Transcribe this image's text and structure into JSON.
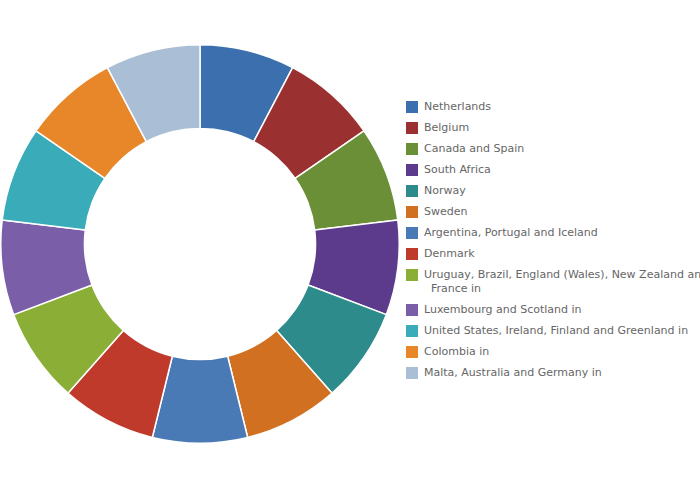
{
  "chart_data": {
    "type": "donut",
    "categories": [
      "Netherlands",
      "Belgium",
      "Canada and Spain",
      "South Africa",
      "Norway",
      "Sweden",
      "Argentina, Portugal and Iceland",
      "Denmark",
      "Uruguay, Brazil, England (Wales), New Zealand and\n  France in",
      "Luxembourg and Scotland in",
      "United States, Ireland, Finland and Greenland in",
      "Colombia in",
      "Malta, Australia and Germany in"
    ],
    "values": [
      1,
      1,
      1,
      1,
      1,
      1,
      1,
      1,
      1,
      1,
      1,
      1,
      1
    ],
    "colors": [
      "#3B6FAD",
      "#9B3030",
      "#6B8F36",
      "#5C3A8C",
      "#2D8B8B",
      "#D07020",
      "#4A7AB5",
      "#C03A2B",
      "#8BAF36",
      "#7A5EA8",
      "#3AABB8",
      "#E8872A",
      "#AABFD6"
    ],
    "legend": "right"
  }
}
